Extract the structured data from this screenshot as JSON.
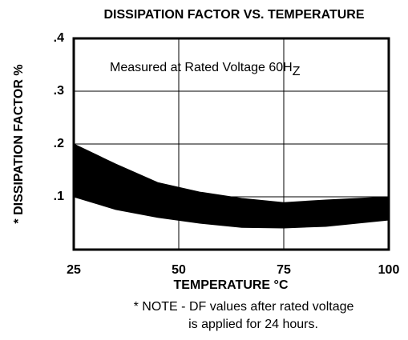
{
  "chart_data": {
    "type": "band",
    "title": "DISSIPATION FACTOR VS. TEMPERATURE",
    "x_label": "TEMPERATURE °C",
    "y_label": "* DISSIPATION FACTOR %",
    "annotation": {
      "text": "Measured at Rated Voltage 60H",
      "subscript": "Z"
    },
    "note": [
      "* NOTE - DF values after rated voltage",
      "is applied for 24 hours."
    ],
    "x": [
      25,
      35,
      45,
      55,
      65,
      75,
      85,
      100
    ],
    "series": [
      {
        "color": "#000000",
        "values": [
          0.2,
          0.162,
          0.127,
          0.109,
          0.097,
          0.089,
          0.094,
          0.1
        ]
      },
      {
        "color": "#000000",
        "values": [
          0.1,
          0.076,
          0.061,
          0.05,
          0.042,
          0.041,
          0.044,
          0.056
        ]
      }
    ],
    "xlim": [
      25,
      100
    ],
    "xticks": [
      25,
      50,
      75,
      100
    ],
    "ylim": [
      0,
      0.4
    ],
    "yticks": [
      {
        "value": 0.1,
        "label": ".1"
      },
      {
        "value": 0.2,
        "label": ".2"
      },
      {
        "value": 0.3,
        "label": ".3"
      },
      {
        "value": 0.4,
        "label": ".4"
      }
    ],
    "grid": true
  }
}
